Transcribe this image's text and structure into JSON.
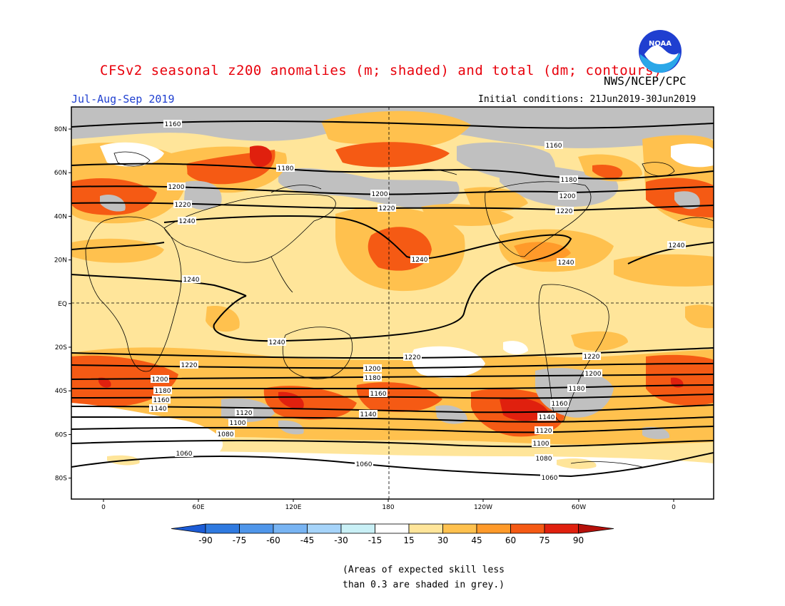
{
  "header": {
    "title": "CFSv2 seasonal z200 anomalies (m; shaded) and total (dm; contours)",
    "agency": "NWS/NCEP/CPC",
    "season": "Jul-Aug-Sep 2019",
    "initial_conditions": "Initial conditions: 21Jun2019-30Jun2019"
  },
  "logo": {
    "icon": "noaa-logo-icon",
    "text": "NOAA"
  },
  "map": {
    "lat_labels": [
      "80N",
      "60N",
      "40N",
      "20N",
      "EQ",
      "20S",
      "40S",
      "60S",
      "80S"
    ],
    "lon_labels": [
      "0",
      "60E",
      "120E",
      "180",
      "120W",
      "60W",
      "0"
    ],
    "contour_labels": [
      "1060",
      "1080",
      "1100",
      "1120",
      "1140",
      "1160",
      "1180",
      "1200",
      "1220",
      "1240"
    ]
  },
  "colorbar": {
    "ticks": [
      "-90",
      "-75",
      "-60",
      "-45",
      "-30",
      "-15",
      "15",
      "30",
      "45",
      "60",
      "75",
      "90"
    ],
    "colors": [
      "#1c5cd6",
      "#2f7ae0",
      "#4f96ea",
      "#78b4f3",
      "#a6d4fa",
      "#c9f0f6",
      "#ffffff",
      "#ffe59a",
      "#ffc14e",
      "#ff9a2a",
      "#f55a14",
      "#e0200e",
      "#b5100a"
    ]
  },
  "note": {
    "line1": "(Areas of expected skill less",
    "line2": "than 0.3 are shaded in grey.)"
  }
}
